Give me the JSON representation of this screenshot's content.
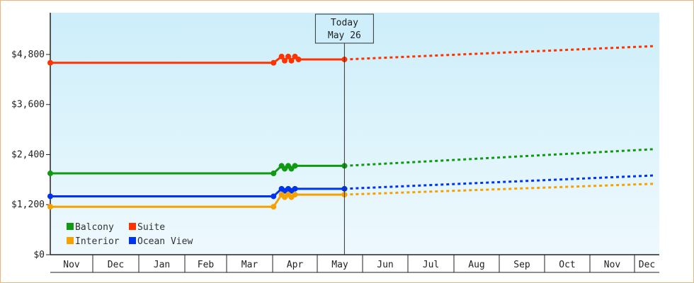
{
  "chart_data": {
    "type": "line",
    "title": "",
    "xlabel": "",
    "ylabel": "",
    "ylim": [
      0,
      5800
    ],
    "yticks": [
      0,
      1200,
      2400,
      3600,
      4800
    ],
    "ytick_labels": [
      "$0",
      "$1,200",
      "$2,400",
      "$3,600",
      "$4,800"
    ],
    "months": [
      "Nov",
      "Dec",
      "Jan",
      "Feb",
      "Mar",
      "Apr",
      "May",
      "Jun",
      "Jul",
      "Aug",
      "Sep",
      "Oct",
      "Nov",
      "Dec"
    ],
    "today": {
      "line1": "Today",
      "line2": "May 26"
    },
    "legend_position": "bottom-left",
    "series": [
      {
        "name": "Suite",
        "color": "#ff3300",
        "actual": [
          [
            0.0,
            4600
          ],
          [
            5.02,
            4600
          ],
          [
            5.2,
            4750
          ],
          [
            5.27,
            4650
          ],
          [
            5.35,
            4750
          ],
          [
            5.42,
            4650
          ],
          [
            5.5,
            4750
          ],
          [
            5.58,
            4680
          ],
          [
            6.6,
            4680
          ]
        ],
        "actual_markers": [
          0,
          1,
          2,
          3,
          4,
          5,
          6,
          7,
          8
        ],
        "forecast": [
          [
            6.6,
            4680
          ],
          [
            13.8,
            5000
          ]
        ]
      },
      {
        "name": "Balcony",
        "color": "#119911",
        "actual": [
          [
            0.0,
            1950
          ],
          [
            5.02,
            1950
          ],
          [
            5.2,
            2130
          ],
          [
            5.27,
            2060
          ],
          [
            5.35,
            2130
          ],
          [
            5.42,
            2060
          ],
          [
            5.5,
            2130
          ],
          [
            5.58,
            2130
          ],
          [
            6.6,
            2130
          ]
        ],
        "actual_markers": [
          0,
          1,
          2,
          3,
          4,
          5,
          6,
          8
        ],
        "forecast": [
          [
            6.6,
            2130
          ],
          [
            13.8,
            2530
          ]
        ]
      },
      {
        "name": "Ocean View",
        "color": "#0033ee",
        "actual": [
          [
            0.0,
            1400
          ],
          [
            5.02,
            1400
          ],
          [
            5.2,
            1580
          ],
          [
            5.27,
            1530
          ],
          [
            5.35,
            1580
          ],
          [
            5.42,
            1530
          ],
          [
            5.5,
            1580
          ],
          [
            5.58,
            1580
          ],
          [
            6.6,
            1580
          ]
        ],
        "actual_markers": [
          0,
          1,
          2,
          3,
          4,
          5,
          6,
          8
        ],
        "forecast": [
          [
            6.6,
            1580
          ],
          [
            13.8,
            1900
          ]
        ]
      },
      {
        "name": "Interior",
        "color": "#f5a100",
        "actual": [
          [
            0.0,
            1150
          ],
          [
            5.02,
            1150
          ],
          [
            5.2,
            1440
          ],
          [
            5.27,
            1380
          ],
          [
            5.35,
            1440
          ],
          [
            5.42,
            1380
          ],
          [
            5.5,
            1440
          ],
          [
            5.58,
            1440
          ],
          [
            6.6,
            1440
          ]
        ],
        "actual_markers": [
          0,
          1,
          2,
          3,
          4,
          5,
          6,
          8
        ],
        "forecast": [
          [
            6.6,
            1440
          ],
          [
            13.8,
            1700
          ]
        ]
      }
    ],
    "legend": [
      "Balcony",
      "Suite",
      "Interior",
      "Ocean View"
    ]
  }
}
